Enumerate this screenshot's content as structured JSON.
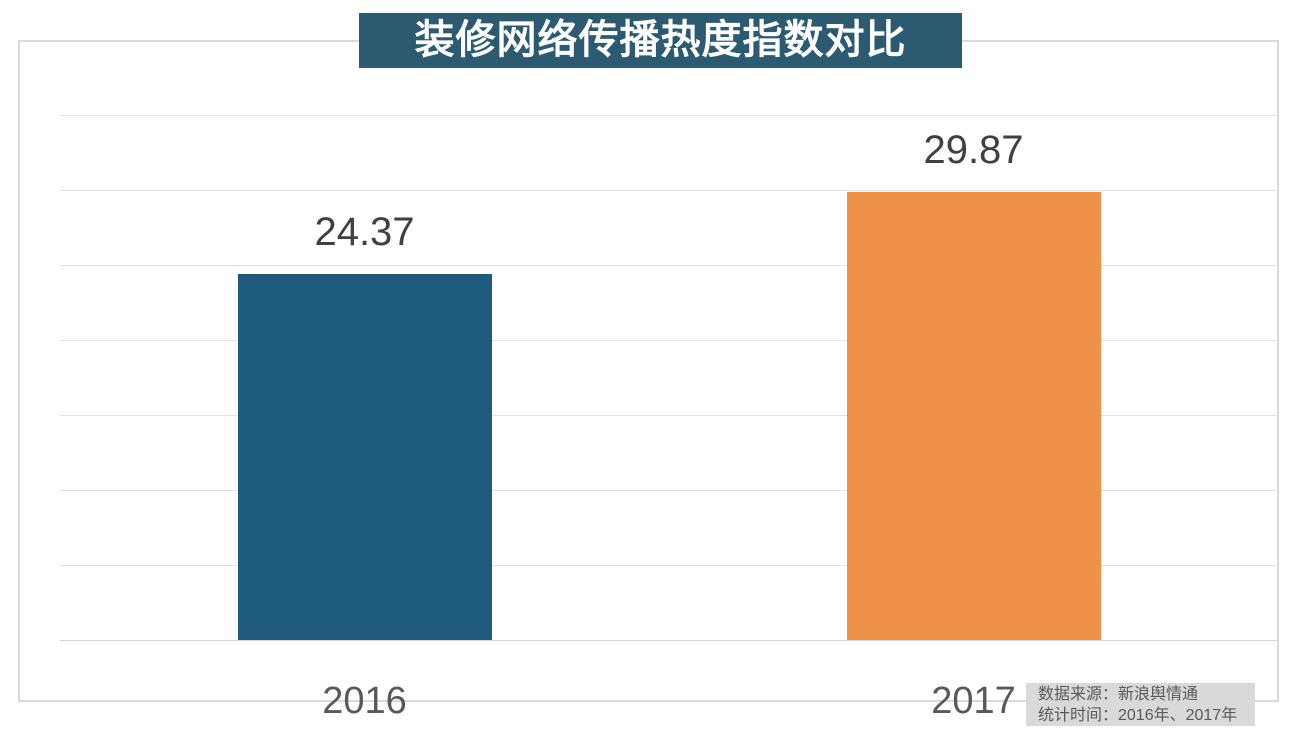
{
  "title": "装修网络传播热度指数对比",
  "chart_data": {
    "type": "bar",
    "title": "装修网络传播热度指数对比",
    "categories": [
      "2016",
      "2017"
    ],
    "values": [
      24.37,
      29.87
    ],
    "value_labels": [
      "24.37",
      "29.87"
    ],
    "xlabel": "",
    "ylabel": "",
    "ylim": [
      0,
      35
    ],
    "gridline_step": 5,
    "grid": "horizontal-only",
    "legend": "none",
    "bar_colors": [
      "#1d5a7d",
      "#f0914a"
    ]
  },
  "source_note": {
    "line1": "数据来源：新浪舆情通",
    "line2": "统计时间：2016年、2017年"
  },
  "colors": {
    "title_bg": "#2c5a70",
    "title_text": "#ffffff",
    "bar_2016": "#1d5a7d",
    "bar_2017": "#f0914a",
    "gridline": "#e2e2e2",
    "frame_border": "#d9d9d9",
    "value_label_text": "#404040",
    "axis_label_text": "#595959",
    "source_bg": "#d9d9d9",
    "source_text": "#595959"
  }
}
